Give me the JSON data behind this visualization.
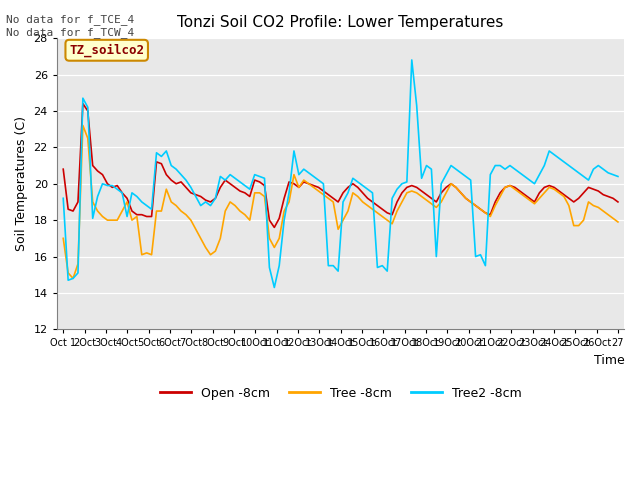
{
  "title": "Tonzi Soil CO2 Profile: Lower Temperatures",
  "ylabel": "Soil Temperatures (C)",
  "xlabel": "Time",
  "top_left_text": "No data for f_TCE_4\nNo data for f_TCW_4",
  "legend_label_text": "TZ_soilco2",
  "ylim": [
    12,
    28
  ],
  "yticks": [
    12,
    14,
    16,
    18,
    20,
    22,
    24,
    26,
    28
  ],
  "xtick_labels": [
    "Oct 1",
    "2Oct",
    "3Oct",
    "4Oct",
    "5Oct",
    "6Oct",
    "7Oct",
    "8Oct",
    "9Oct",
    "10Oct",
    "11Oct",
    "12Oct",
    "13Oct",
    "14Oct",
    "15Oct",
    "16Oct",
    "17Oct",
    "18Oct",
    "19Oct",
    "20Oct",
    "21Oct",
    "22Oct",
    "23Oct",
    "24Oct",
    "25Oct",
    "26Oct",
    "27"
  ],
  "line_colors": [
    "#cc0000",
    "#ffa500",
    "#00ccff"
  ],
  "line_labels": [
    "Open -8cm",
    "Tree -8cm",
    "Tree2 -8cm"
  ],
  "fig_bg_color": "#ffffff",
  "plot_bg_color": "#e8e8e8",
  "open_8cm": [
    20.8,
    18.6,
    18.5,
    19.0,
    24.4,
    24.0,
    21.0,
    20.7,
    20.5,
    20.0,
    19.8,
    19.9,
    19.5,
    19.2,
    18.5,
    18.3,
    18.3,
    18.2,
    18.2,
    21.2,
    21.1,
    20.5,
    20.2,
    20.0,
    20.1,
    19.8,
    19.5,
    19.4,
    19.3,
    19.1,
    19.0,
    19.2,
    19.8,
    20.2,
    20.0,
    19.8,
    19.6,
    19.5,
    19.3,
    20.2,
    20.1,
    19.9,
    18.0,
    17.6,
    18.1,
    19.2,
    20.1,
    20.0,
    19.8,
    20.1,
    20.0,
    19.9,
    19.8,
    19.6,
    19.4,
    19.2,
    19.0,
    19.5,
    19.8,
    20.0,
    19.8,
    19.5,
    19.2,
    19.0,
    18.8,
    18.6,
    18.4,
    18.3,
    19.0,
    19.5,
    19.8,
    19.9,
    19.8,
    19.6,
    19.4,
    19.2,
    19.0,
    19.5,
    19.8,
    20.0,
    19.8,
    19.5,
    19.2,
    19.0,
    18.8,
    18.6,
    18.4,
    18.3,
    19.0,
    19.5,
    19.8,
    19.9,
    19.8,
    19.6,
    19.4,
    19.2,
    19.0,
    19.5,
    19.8,
    19.9,
    19.8,
    19.6,
    19.4,
    19.2,
    19.0,
    19.2,
    19.5,
    19.8,
    19.7,
    19.6,
    19.4,
    19.3,
    19.2,
    19.0
  ],
  "tree_8cm": [
    17.0,
    15.1,
    14.8,
    15.6,
    23.2,
    22.5,
    19.0,
    18.5,
    18.2,
    18.0,
    18.0,
    18.0,
    18.5,
    19.0,
    18.0,
    18.2,
    16.1,
    16.2,
    16.1,
    18.5,
    18.5,
    19.7,
    19.0,
    18.8,
    18.5,
    18.3,
    18.0,
    17.5,
    17.0,
    16.5,
    16.1,
    16.3,
    17.0,
    18.5,
    19.0,
    18.8,
    18.5,
    18.3,
    18.0,
    19.5,
    19.5,
    19.3,
    17.0,
    16.5,
    17.0,
    18.5,
    19.0,
    20.5,
    19.8,
    20.2,
    20.0,
    19.8,
    19.6,
    19.4,
    19.2,
    19.0,
    17.5,
    18.0,
    18.5,
    19.5,
    19.3,
    19.0,
    18.8,
    18.6,
    18.4,
    18.2,
    18.0,
    17.8,
    18.5,
    19.0,
    19.5,
    19.6,
    19.5,
    19.3,
    19.1,
    18.9,
    18.7,
    19.0,
    19.5,
    20.0,
    19.8,
    19.5,
    19.2,
    19.0,
    18.8,
    18.6,
    18.4,
    18.2,
    18.8,
    19.3,
    19.8,
    19.9,
    19.7,
    19.5,
    19.3,
    19.1,
    18.9,
    19.2,
    19.5,
    19.8,
    19.7,
    19.5,
    19.3,
    18.8,
    17.7,
    17.7,
    18.0,
    19.0,
    18.8,
    18.7,
    18.5,
    18.3,
    18.1,
    17.9
  ],
  "tree2_8cm": [
    19.2,
    14.7,
    14.8,
    15.1,
    24.7,
    24.2,
    18.1,
    19.3,
    20.0,
    19.9,
    19.9,
    19.7,
    19.5,
    18.2,
    19.5,
    19.3,
    19.0,
    18.8,
    18.6,
    21.7,
    21.5,
    21.8,
    21.0,
    20.8,
    20.5,
    20.2,
    19.8,
    19.3,
    18.8,
    19.0,
    18.8,
    19.2,
    20.4,
    20.2,
    20.5,
    20.3,
    20.1,
    19.9,
    19.7,
    20.5,
    20.4,
    20.3,
    15.4,
    14.3,
    15.5,
    18.0,
    19.5,
    21.8,
    20.5,
    20.8,
    20.6,
    20.4,
    20.2,
    20.0,
    15.5,
    15.5,
    15.2,
    19.0,
    19.5,
    20.3,
    20.1,
    19.9,
    19.7,
    19.5,
    15.4,
    15.5,
    15.2,
    19.2,
    19.7,
    20.0,
    20.1,
    26.8,
    24.3,
    20.3,
    21.0,
    20.8,
    16.0,
    20.0,
    20.5,
    21.0,
    20.8,
    20.6,
    20.4,
    20.2,
    16.0,
    16.1,
    15.5,
    20.5,
    21.0,
    21.0,
    20.8,
    21.0,
    20.8,
    20.6,
    20.4,
    20.2,
    20.0,
    20.5,
    21.0,
    21.8,
    21.6,
    21.4,
    21.2,
    21.0,
    20.8,
    20.6,
    20.4,
    20.2,
    20.8,
    21.0,
    20.8,
    20.6,
    20.5,
    20.4
  ]
}
